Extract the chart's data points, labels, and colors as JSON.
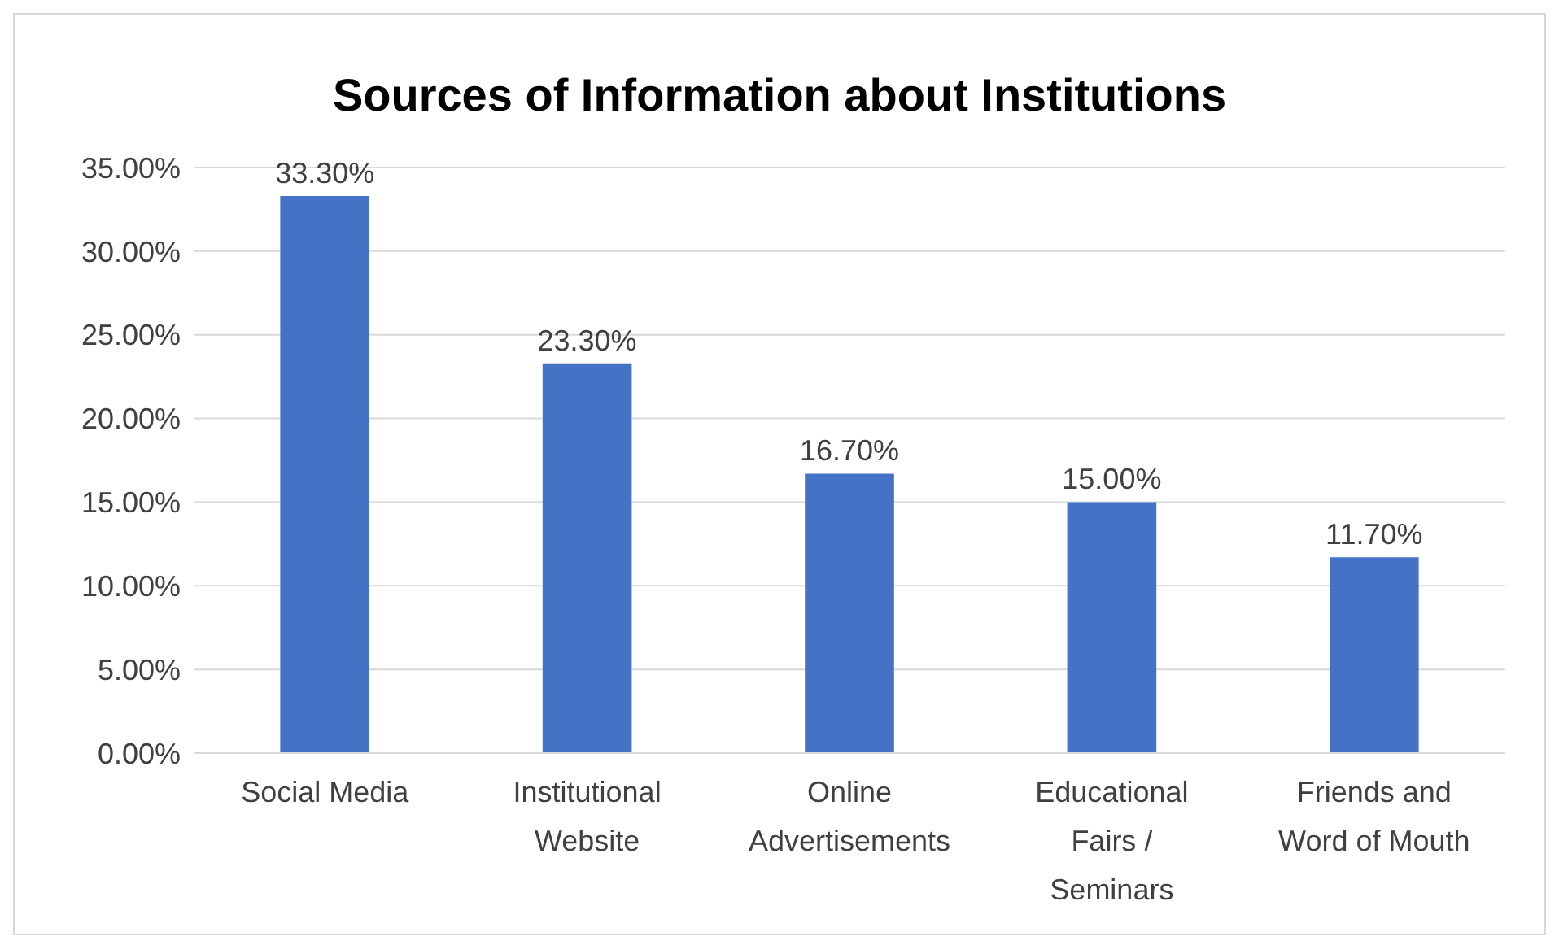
{
  "chart_data": {
    "type": "bar",
    "title": "Sources of Information about Institutions",
    "categories": [
      "Social Media",
      "Institutional Website",
      "Online Advertisements",
      "Educational Fairs / Seminars",
      "Friends and Word of Mouth"
    ],
    "values": [
      33.3,
      23.3,
      16.7,
      15.0,
      11.7
    ],
    "value_labels": [
      "33.30%",
      "23.30%",
      "16.70%",
      "15.00%",
      "11.70%"
    ],
    "color": "#4472c4",
    "ylim": [
      0,
      35
    ],
    "yticks": [
      {
        "value": 0,
        "label": "0.00%"
      },
      {
        "value": 5,
        "label": "5.00%"
      },
      {
        "value": 10,
        "label": "10.00%"
      },
      {
        "value": 15,
        "label": "15.00%"
      },
      {
        "value": 20,
        "label": "20.00%"
      },
      {
        "value": 25,
        "label": "25.00%"
      },
      {
        "value": 30,
        "label": "30.00%"
      },
      {
        "value": 35,
        "label": "35.00%"
      }
    ],
    "grid": "y"
  }
}
